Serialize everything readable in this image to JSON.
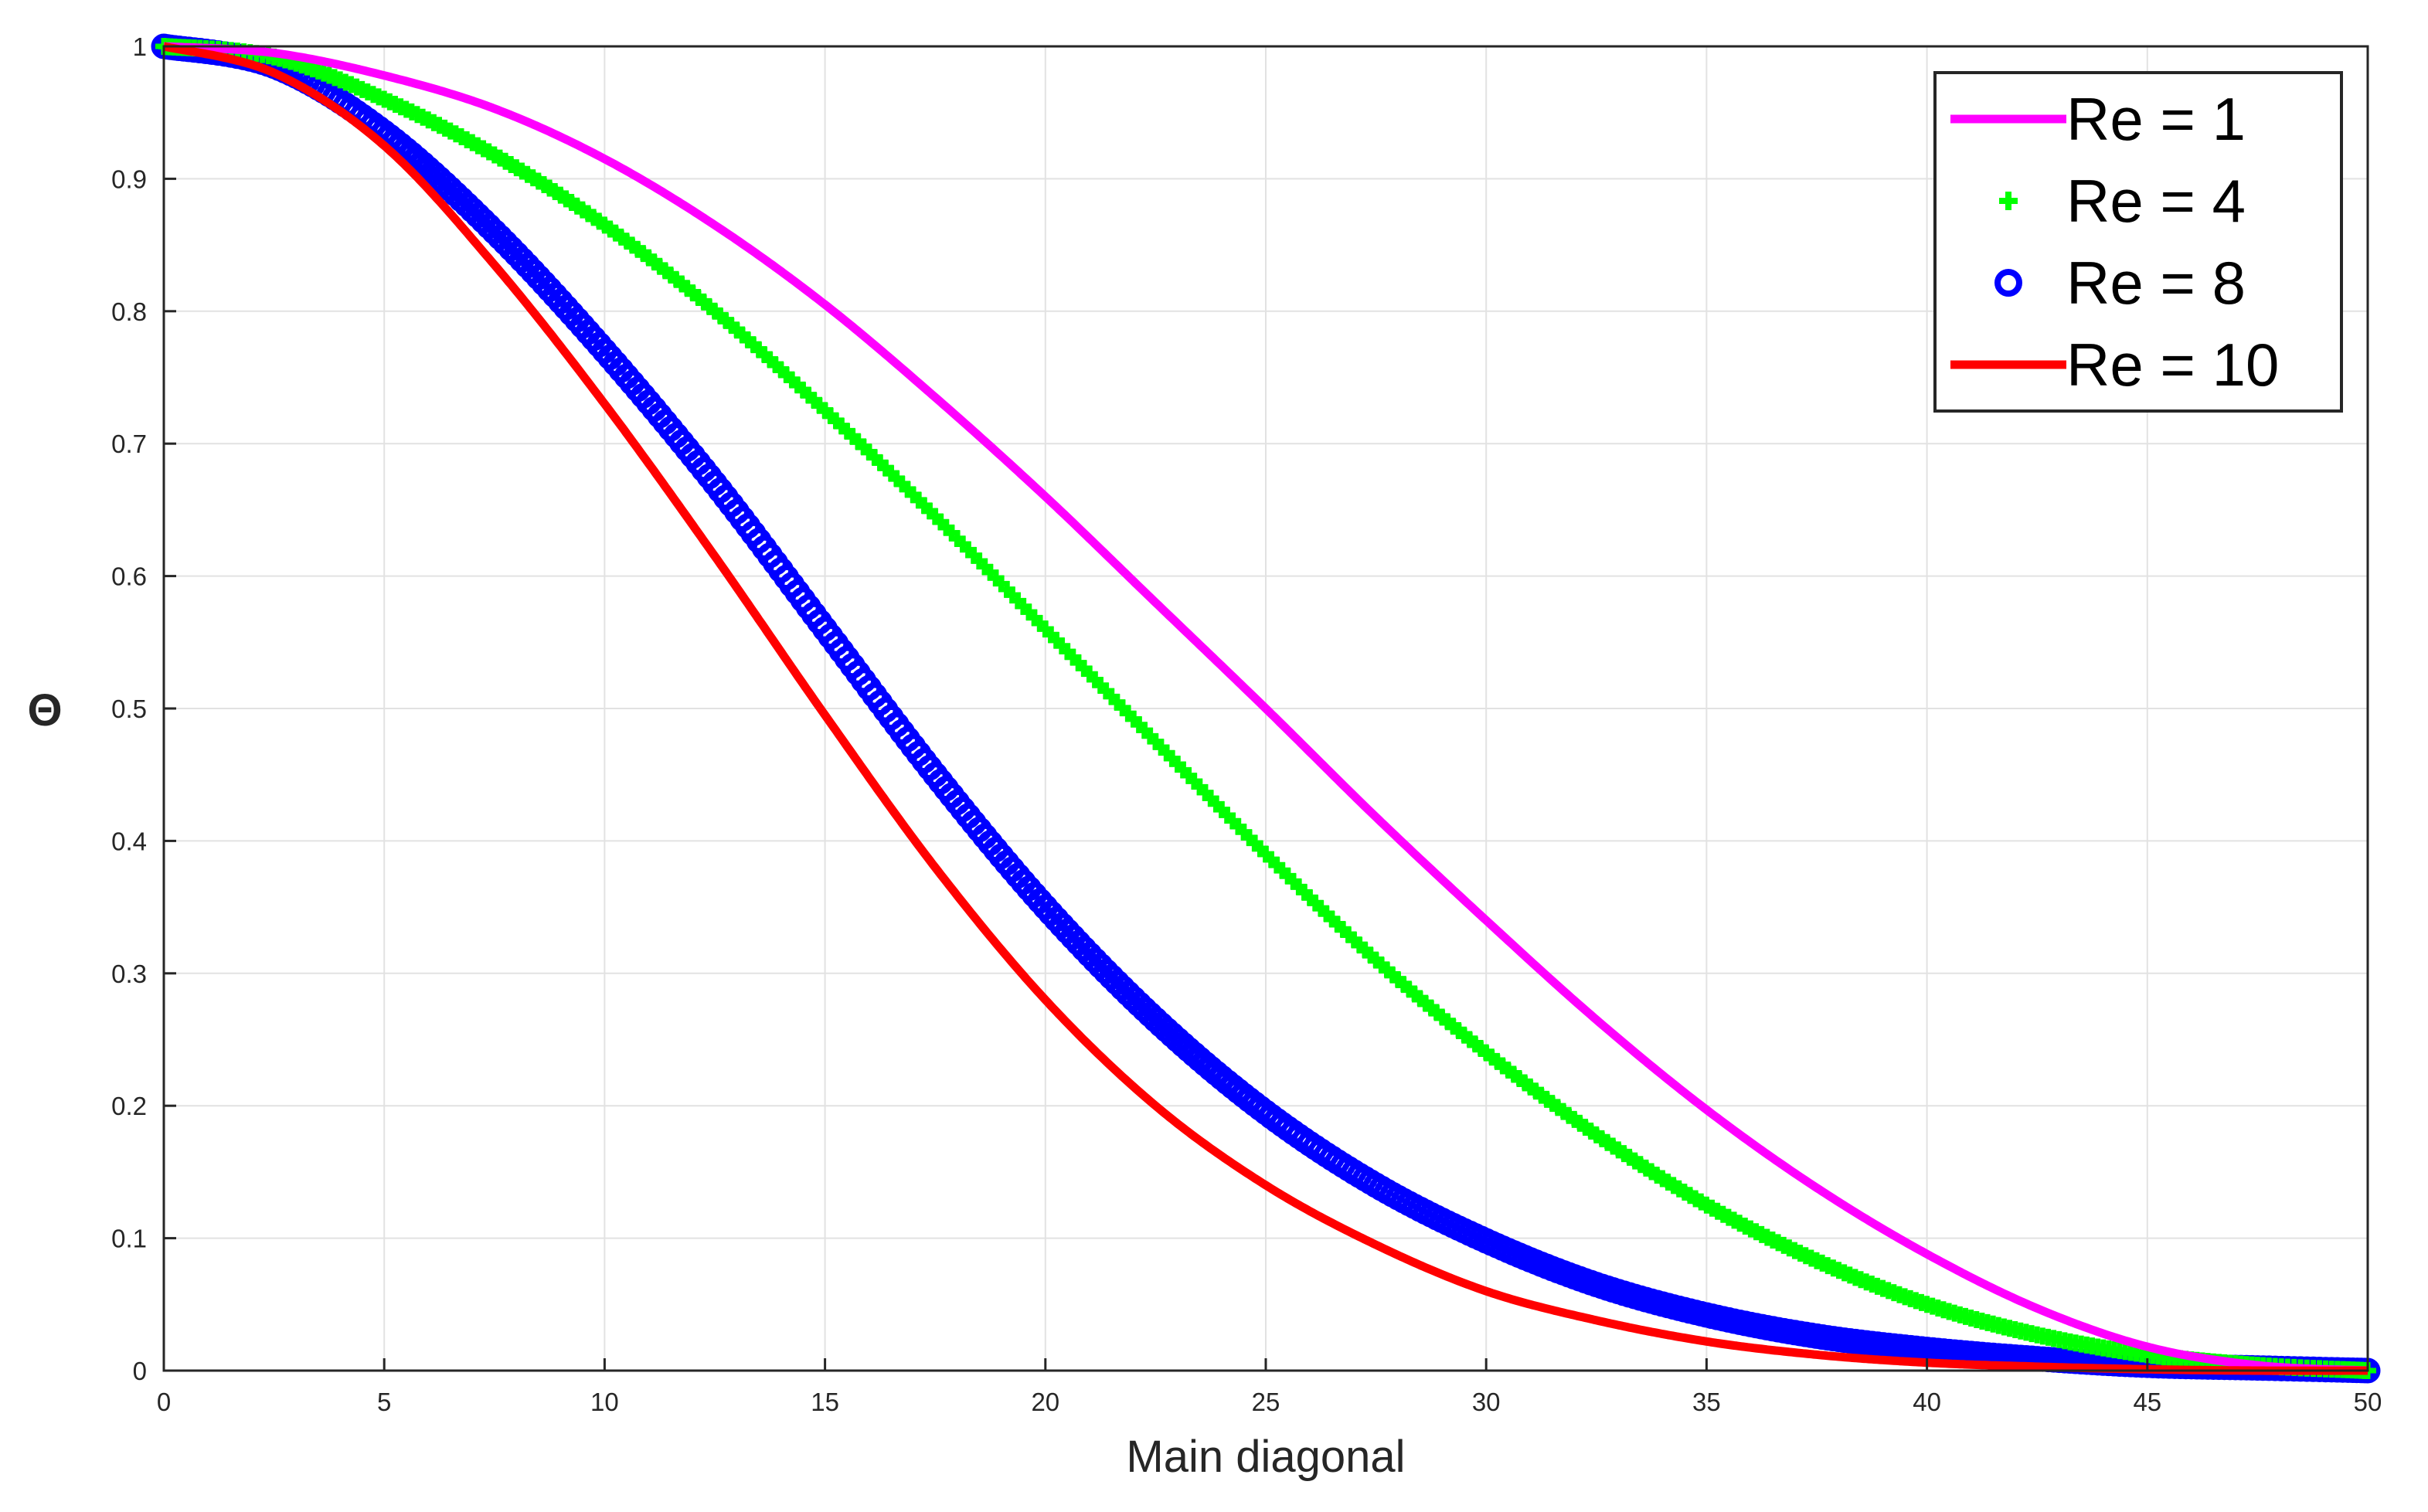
{
  "chart_data": {
    "type": "line",
    "title": "",
    "xlabel": "Main diagonal",
    "ylabel": "Θ",
    "xlim": [
      0,
      50
    ],
    "ylim": [
      0,
      1
    ],
    "grid": true,
    "x_ticks": [
      "0",
      "5",
      "10",
      "15",
      "20",
      "25",
      "30",
      "35",
      "40",
      "45",
      "50"
    ],
    "y_ticks": [
      "0",
      "0.1",
      "0.2",
      "0.3",
      "0.4",
      "0.5",
      "0.6",
      "0.7",
      "0.8",
      "0.9",
      "1"
    ],
    "legend_position": "top-right",
    "series": [
      {
        "name": "Re = 1",
        "style": "line",
        "color": "#ff00ff",
        "x": [
          0,
          2.5,
          5,
          7.5,
          10,
          12.5,
          15,
          17.5,
          20,
          22.5,
          25,
          27.5,
          30,
          32.5,
          35,
          37.5,
          40,
          42.5,
          45,
          47.5,
          50
        ],
        "y": [
          1.0,
          0.995,
          0.978,
          0.953,
          0.915,
          0.865,
          0.805,
          0.735,
          0.66,
          0.58,
          0.5,
          0.418,
          0.34,
          0.265,
          0.197,
          0.138,
          0.088,
          0.047,
          0.018,
          0.004,
          0.0
        ]
      },
      {
        "name": "Re = 4",
        "style": "plus",
        "color": "#00ff00",
        "x": [
          0,
          2.5,
          5,
          7.5,
          10,
          12.5,
          15,
          17.5,
          20,
          22.5,
          25,
          27.5,
          30,
          32.5,
          35,
          37.5,
          40,
          42.5,
          45,
          47.5,
          50
        ],
        "y": [
          1.0,
          0.992,
          0.96,
          0.918,
          0.865,
          0.8,
          0.725,
          0.645,
          0.56,
          0.475,
          0.39,
          0.31,
          0.24,
          0.178,
          0.125,
          0.083,
          0.05,
          0.027,
          0.012,
          0.004,
          0.0
        ]
      },
      {
        "name": "Re = 8",
        "style": "circle",
        "color": "#0000ff",
        "x": [
          0,
          2.5,
          5,
          7.5,
          10,
          12.5,
          15,
          17.5,
          20,
          22.5,
          25,
          27.5,
          30,
          32.5,
          35,
          37.5,
          40,
          42.5,
          45,
          47.5,
          50
        ],
        "y": [
          1.0,
          0.985,
          0.935,
          0.86,
          0.77,
          0.67,
          0.56,
          0.45,
          0.35,
          0.265,
          0.195,
          0.14,
          0.098,
          0.065,
          0.042,
          0.026,
          0.016,
          0.009,
          0.004,
          0.002,
          0.0
        ]
      },
      {
        "name": "Re = 10",
        "style": "line",
        "color": "#ff0000",
        "x": [
          0,
          2.5,
          5,
          7.5,
          10,
          12.5,
          15,
          17.5,
          20,
          22.5,
          25,
          27.5,
          30,
          32.5,
          35,
          37.5,
          40,
          42.5,
          45,
          47.5,
          50
        ],
        "y": [
          1.0,
          0.98,
          0.925,
          0.835,
          0.73,
          0.615,
          0.495,
          0.38,
          0.28,
          0.2,
          0.14,
          0.095,
          0.06,
          0.038,
          0.022,
          0.012,
          0.006,
          0.003,
          0.001,
          0.0,
          0.0
        ]
      }
    ]
  }
}
